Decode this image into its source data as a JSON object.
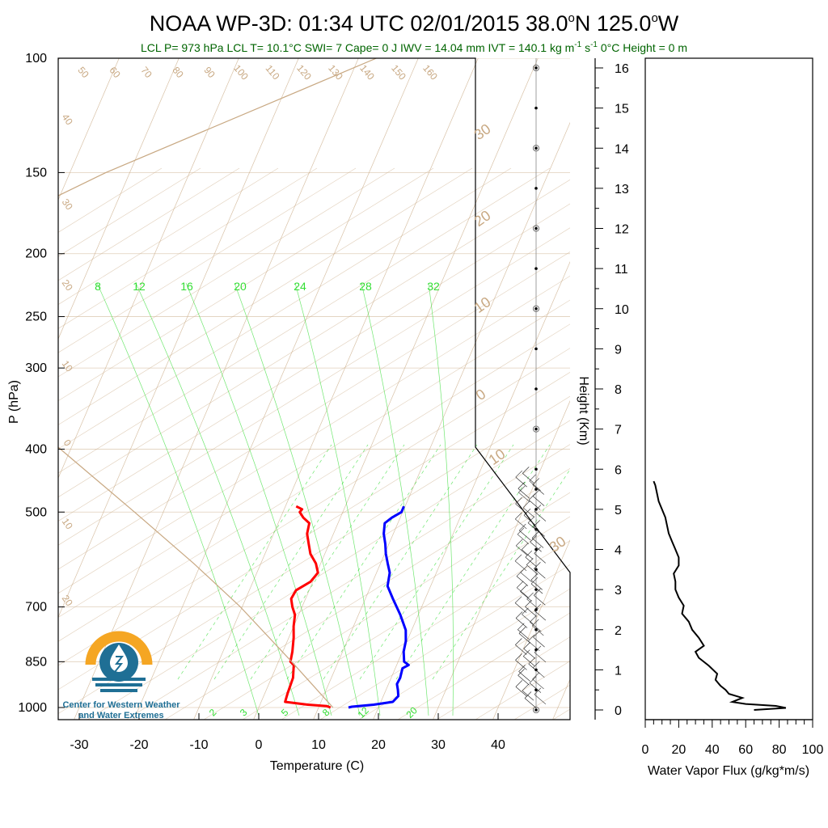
{
  "title": "NOAA WP-3D: 01:34 UTC 02/01/2015  38.0°N 125.0°W",
  "title_parts": {
    "main": "NOAA WP-3D: 01:34 UTC 02/01/2015  38.0",
    "lat": "N 125.0",
    "lon": "W",
    "deg": "o"
  },
  "subtitle": {
    "text1": "LCL P= 973 hPa  LCL T= 10.1°C  SWI= 7  Cape= 0 J  IWV = 14.04 mm  IVT = 140.1 kg m",
    "sup1": "-1",
    "mid": " s",
    "sup2": "-1",
    "text2": "  0°C Height = 0 m",
    "color": "#006400"
  },
  "logo": {
    "line1": "Center for Western Weather",
    "line2": "and Water Extremes"
  },
  "colors": {
    "temperature": "#ff0000",
    "dewpoint": "#0000ff",
    "isotherm": "#c8a882",
    "mixing_ratio": "#33dd33",
    "flux": "#000000"
  },
  "chart_data": [
    {
      "type": "line",
      "name": "skew-t",
      "xlabel": "Temperature (C)",
      "ylabel": "P (hPa)",
      "y2label": "Height (Km)",
      "xlim": [
        -35,
        50
      ],
      "ylim": [
        1050,
        100
      ],
      "log_y": true,
      "x_ticks": [
        -30,
        -20,
        -10,
        0,
        10,
        20,
        30,
        40
      ],
      "y_ticks": [
        1000,
        850,
        700,
        500,
        400,
        300,
        250,
        200,
        150,
        100
      ],
      "height_ticks_km": [
        0,
        1,
        2,
        3,
        4,
        5,
        6,
        7,
        8,
        9,
        10,
        11,
        12,
        13,
        14,
        15,
        16
      ],
      "isotherm_labels": [
        "50",
        "60",
        "70",
        "80",
        "90",
        "100",
        "110",
        "120",
        "130",
        "140",
        "150",
        "160"
      ],
      "dry_adiabat_labels_left": [
        "40",
        "30",
        "20",
        "10",
        "0",
        "10",
        "20"
      ],
      "dry_adiabat_labels_right": [
        "30",
        "20",
        "10",
        "0",
        "10",
        "30"
      ],
      "mixing_ratio_top_labels": [
        "8",
        "12",
        "16",
        "20",
        "24",
        "28",
        "32"
      ],
      "mixing_ratio_bottom_labels": [
        "2",
        "3",
        "5",
        "8",
        "12",
        "20"
      ],
      "series": [
        {
          "name": "",
          "role": "temperature",
          "p": [
            1000,
            995,
            990,
            980,
            950,
            900,
            860,
            850,
            820,
            780,
            750,
            720,
            700,
            680,
            660,
            640,
            620,
            600,
            580,
            560,
            540,
            520,
            510,
            500,
            495,
            490
          ],
          "t": [
            12.0,
            11.3,
            8.0,
            4.0,
            3.8,
            3.6,
            2.8,
            2.0,
            1.6,
            0.8,
            0.0,
            -0.6,
            -1.6,
            -2.4,
            -2.2,
            -0.4,
            0.2,
            -0.8,
            -2.4,
            -3.4,
            -4.4,
            -4.8,
            -6.2,
            -7.2,
            -7.0,
            -8.2
          ]
        },
        {
          "name": "",
          "role": "dewpoint",
          "p": [
            1000,
            997,
            990,
            980,
            960,
            940,
            920,
            900,
            870,
            860,
            850,
            820,
            790,
            760,
            720,
            680,
            650,
            620,
            600,
            580,
            560,
            540,
            520,
            510,
            500,
            490
          ],
          "t": [
            15.0,
            15.5,
            19.0,
            22.0,
            22.5,
            22.0,
            21.4,
            21.5,
            21.2,
            22.0,
            21.0,
            20.2,
            19.8,
            19.0,
            17.0,
            14.6,
            12.8,
            12.2,
            11.2,
            10.2,
            9.4,
            8.4,
            7.8,
            8.6,
            9.8,
            9.8
          ]
        },
        {
          "name": "",
          "role": "reference",
          "p": [
            1000,
            850,
            700,
            600,
            500,
            400,
            300,
            250,
            220,
            200,
            150,
            100
          ],
          "t": [
            12.4,
            2.2,
            -10.3,
            -21.2,
            -34.8,
            -51.7,
            -73.2,
            -86.3,
            -98.0,
            -86.0,
            -64.0,
            -27.0
          ]
        }
      ],
      "sounding_marks_km": [
        0,
        0.5,
        1,
        1.5,
        2,
        2.5,
        3,
        3.5,
        4,
        4.5,
        5,
        5.5,
        6,
        7,
        8,
        9,
        10,
        11,
        12,
        13,
        14,
        15,
        16
      ],
      "sounding_circles_km": [
        0,
        7,
        10,
        12,
        14,
        16
      ]
    },
    {
      "type": "line",
      "name": "water-vapor-flux",
      "xlabel": "Water Vapor Flux (g/kg*m/s)",
      "xlim": [
        0,
        100
      ],
      "ylim_km": [
        -0.2,
        16.4
      ],
      "x_ticks": [
        0,
        20,
        40,
        60,
        80,
        100
      ],
      "series": [
        {
          "name": "",
          "height_km": [
            0.0,
            0.05,
            0.1,
            0.15,
            0.2,
            0.3,
            0.4,
            0.5,
            0.6,
            0.75,
            0.9,
            1.1,
            1.3,
            1.45,
            1.6,
            1.8,
            2.0,
            2.2,
            2.4,
            2.6,
            2.8,
            3.0,
            3.2,
            3.4,
            3.6,
            3.8,
            4.0,
            4.2,
            4.4,
            4.6,
            4.8,
            5.0,
            5.2,
            5.4,
            5.6,
            5.7
          ],
          "flux": [
            65,
            84,
            78,
            60,
            52,
            58,
            50,
            48,
            45,
            42,
            43,
            38,
            32,
            30,
            35,
            32,
            28,
            26,
            22,
            23,
            20,
            18,
            18,
            17,
            20,
            20,
            18,
            16,
            14,
            13,
            12,
            10,
            8,
            7,
            6,
            5
          ]
        }
      ]
    }
  ]
}
